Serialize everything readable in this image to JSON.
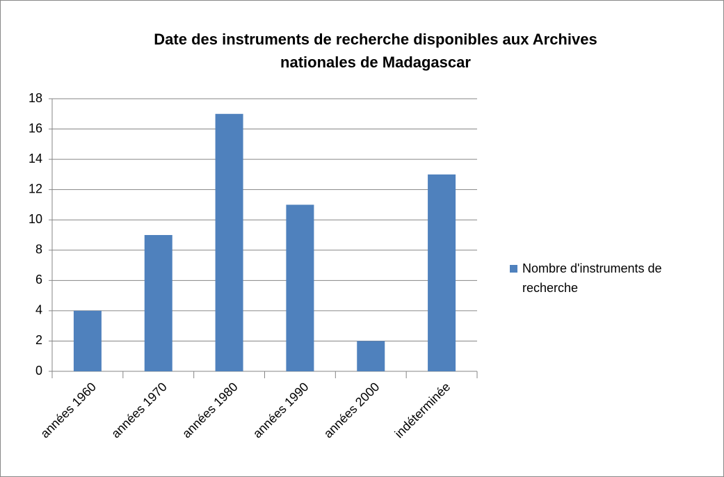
{
  "chart_data": {
    "type": "bar",
    "title": "Date des instruments de recherche disponibles aux Archives nationales de Madagascar",
    "categories": [
      "années 1960",
      "années 1970",
      "années 1980",
      "années 1990",
      "années 2000",
      "indéterminée"
    ],
    "series": [
      {
        "name": "Nombre d'instruments de recherche",
        "color": "#4f81bd",
        "values": [
          4,
          9,
          17,
          11,
          2,
          13
        ]
      }
    ],
    "ylim": [
      0,
      18
    ],
    "yticks": [
      0,
      2,
      4,
      6,
      8,
      10,
      12,
      14,
      16,
      18
    ],
    "grid": true,
    "legend": "right"
  }
}
